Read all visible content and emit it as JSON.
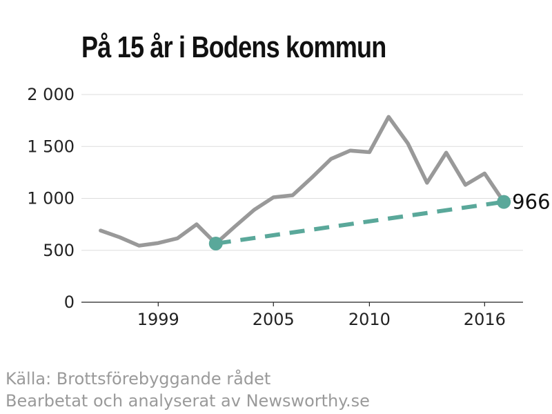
{
  "title": "På 15 år i Bodens kommun",
  "source_line1": "Källa: Brottsförebyggande rådet",
  "source_line2": "Bearbetat och analyserat av Newsworthy.se",
  "colors": {
    "series": "#999999",
    "trend": "#5aa89a",
    "grid": "#dddddd",
    "axis": "#222222"
  },
  "chart_data": {
    "type": "line",
    "title": "På 15 år i Bodens kommun",
    "xlabel": "",
    "ylabel": "",
    "xlim": [
      1995,
      2018
    ],
    "ylim": [
      0,
      2000
    ],
    "grid": true,
    "y_ticks": [
      0,
      500,
      1000,
      1500,
      2000
    ],
    "y_tick_labels": [
      "0",
      "500",
      "1 000",
      "1 500",
      "2 000"
    ],
    "x_ticks": [
      1999,
      2005,
      2010,
      2016
    ],
    "x_tick_labels": [
      "1999",
      "2005",
      "2010",
      "2016"
    ],
    "series": [
      {
        "x": [
          1996,
          1997,
          1998,
          1999,
          2000,
          2001,
          2002,
          2003,
          2004,
          2005,
          2006,
          2007,
          2008,
          2009,
          2010,
          2011,
          2012,
          2013,
          2014,
          2015,
          2016,
          2017
        ],
        "values": [
          690,
          625,
          545,
          570,
          615,
          750,
          565,
          730,
          890,
          1010,
          1030,
          1200,
          1380,
          1460,
          1445,
          1785,
          1530,
          1150,
          1440,
          1130,
          1240,
          966
        ]
      }
    ],
    "trend": {
      "x": [
        2002,
        2017
      ],
      "values": [
        565,
        966
      ]
    },
    "end_label": "966"
  }
}
